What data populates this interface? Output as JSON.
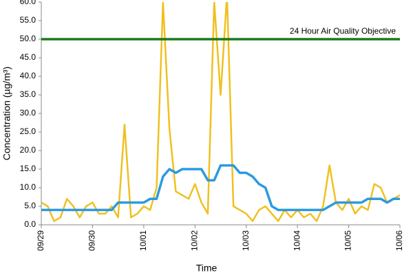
{
  "chart_data": {
    "type": "line",
    "x_label": "Time",
    "y_label": "Concentration (µg/m³)",
    "x": [
      0,
      0.125,
      0.25,
      0.375,
      0.5,
      0.625,
      0.75,
      0.875,
      1,
      1.125,
      1.25,
      1.375,
      1.5,
      1.625,
      1.75,
      1.875,
      2,
      2.125,
      2.25,
      2.375,
      2.5,
      2.625,
      2.75,
      2.875,
      3,
      3.125,
      3.25,
      3.375,
      3.5,
      3.625,
      3.75,
      3.875,
      4,
      4.125,
      4.25,
      4.375,
      4.5,
      4.625,
      4.75,
      4.875,
      5,
      5.125,
      5.25,
      5.375,
      5.5,
      5.625,
      5.75,
      5.875,
      6,
      6.125,
      6.25,
      6.375,
      6.5,
      6.625,
      6.75,
      6.875,
      7
    ],
    "series": [
      {
        "color": "#f0c020",
        "values": [
          6,
          5,
          1,
          2,
          7,
          5,
          2,
          5,
          6,
          3,
          3,
          5,
          2,
          27,
          2,
          3,
          5,
          4,
          10,
          60,
          26,
          9,
          8,
          7,
          11,
          6,
          3,
          60,
          35,
          62,
          5,
          4,
          3,
          1,
          4,
          5,
          3,
          1,
          4,
          2,
          4,
          2,
          3,
          1,
          5,
          16,
          6,
          4,
          7,
          3,
          5,
          4,
          11,
          10,
          6,
          7,
          8
        ]
      },
      {
        "color": "#2b9ae0",
        "values": [
          4,
          4,
          4,
          4,
          4,
          4,
          4,
          4,
          4,
          4,
          4,
          4,
          6,
          6,
          6,
          6,
          6,
          7,
          7,
          13,
          15,
          14,
          15,
          15,
          15,
          15,
          12,
          12,
          16,
          16,
          16,
          14,
          14,
          13,
          11,
          10,
          5,
          4,
          4,
          4,
          4,
          4,
          4,
          4,
          4,
          5,
          6,
          6,
          6,
          6,
          6,
          7,
          7,
          7,
          6,
          7,
          7
        ]
      }
    ],
    "reference_lines": [
      {
        "value": 50,
        "label": "24 Hour Air Quality Objective",
        "color": "#1a7a1a"
      }
    ],
    "xlim": [
      0,
      7
    ],
    "xticks": [
      {
        "value": 0,
        "label": "09/29"
      },
      {
        "value": 1,
        "label": "09/30"
      },
      {
        "value": 2,
        "label": "10/01"
      },
      {
        "value": 3,
        "label": "10/02"
      },
      {
        "value": 4,
        "label": "10/03"
      },
      {
        "value": 5,
        "label": "10/04"
      },
      {
        "value": 6,
        "label": "10/05"
      },
      {
        "value": 7,
        "label": "10/06"
      }
    ],
    "ylim": [
      0,
      60
    ],
    "yticks": [
      {
        "value": 0,
        "label": "0.0"
      },
      {
        "value": 5,
        "label": "5.0"
      },
      {
        "value": 10,
        "label": "10.0"
      },
      {
        "value": 15,
        "label": "15.0"
      },
      {
        "value": 20,
        "label": "20.0"
      },
      {
        "value": 25,
        "label": "25.0"
      },
      {
        "value": 30,
        "label": "30.0"
      },
      {
        "value": 35,
        "label": "35.0"
      },
      {
        "value": 40,
        "label": "40.0"
      },
      {
        "value": 45,
        "label": "45.0"
      },
      {
        "value": 50,
        "label": "50.0"
      },
      {
        "value": 55,
        "label": "55.0"
      },
      {
        "value": 60,
        "label": "60.0"
      }
    ],
    "grid": false
  }
}
